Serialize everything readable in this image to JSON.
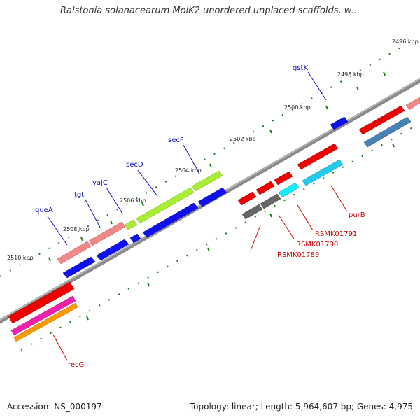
{
  "title": "Ralstonia solanacearum MolK2 unordered unplaced scaffolds, w...",
  "footer": {
    "accession": "Accession: NS_000197",
    "summary": "Topology: linear; Length: 5,964,607 bp; Genes: 4,975"
  },
  "colors": {
    "backbone": "#808080",
    "tick": "#1a7a1a",
    "label_forward": "#1010c0",
    "label_reverse": "#cc0000"
  },
  "scale": {
    "ticks": [
      {
        "label": "2510 kbp"
      },
      {
        "label": "2508 kbp"
      },
      {
        "label": "2506 kbp"
      },
      {
        "label": "2504 kbp"
      },
      {
        "label": "2502 kbp"
      },
      {
        "label": "2500 kbp"
      },
      {
        "label": "2498 kbp"
      },
      {
        "label": "2496 kbp"
      }
    ]
  },
  "features": [
    {
      "name": "queA",
      "color": "#f08888"
    },
    {
      "name": "tgt",
      "color": "#f08888"
    },
    {
      "name": "yajC",
      "color": "#aaee33"
    },
    {
      "name": "secD",
      "color": "#aaee33"
    },
    {
      "name": "secF",
      "color": "#aaee33"
    },
    {
      "name": "gstK",
      "color": "#1010ee"
    },
    {
      "name": "RSMK01789",
      "color": "#666666"
    },
    {
      "name": "RSMK01790",
      "color": "#666666"
    },
    {
      "name": "RSMK01791",
      "color": "#11eeff"
    },
    {
      "name": "purB",
      "color": "#22ccee"
    },
    {
      "name": "recG",
      "color": "#ee0000"
    }
  ]
}
